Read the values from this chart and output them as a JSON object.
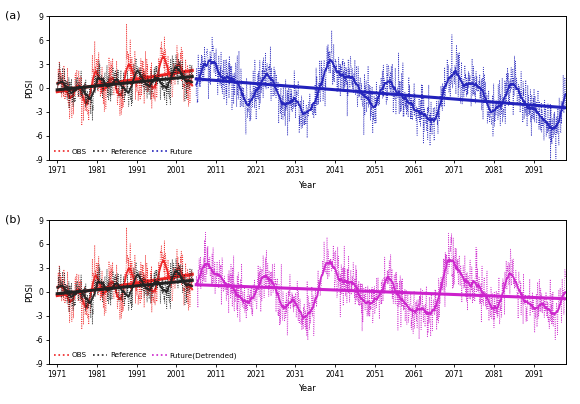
{
  "xlim": [
    1969,
    2099
  ],
  "ylim": [
    -9,
    9
  ],
  "yticks": [
    -9,
    -6,
    -3,
    0,
    3,
    6,
    9
  ],
  "xticks": [
    1971,
    1981,
    1991,
    2001,
    2011,
    2021,
    2031,
    2041,
    2051,
    2061,
    2071,
    2081,
    2091
  ],
  "xlabel": "Year",
  "ylabel": "PDSI",
  "obs_color": "#EE2222",
  "ref_color": "#222222",
  "future_a_color": "#2222BB",
  "future_b_color": "#CC22CC",
  "obs_start": 1971,
  "obs_end": 2005,
  "future_start": 2006,
  "future_end": 2099,
  "background_color": "#ffffff",
  "seed": 42
}
